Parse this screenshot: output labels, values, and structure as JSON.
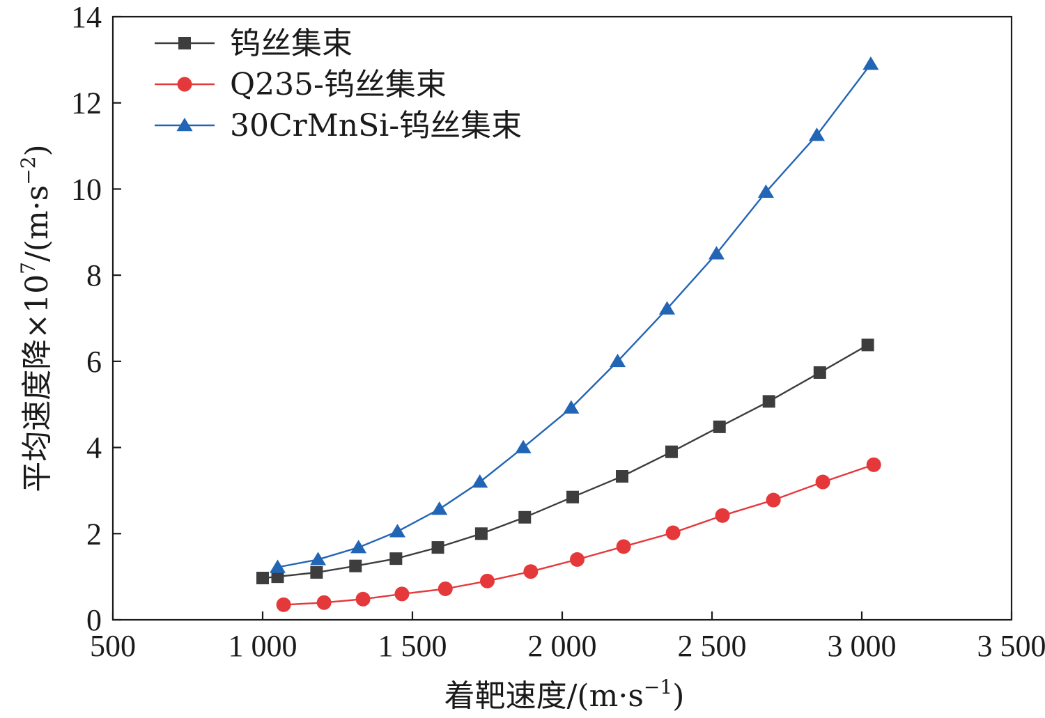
{
  "chart_data": {
    "type": "line",
    "title": "",
    "xlabel_main": "着靶速度/(m",
    "xlabel_dot": "·",
    "xlabel_s": "s",
    "xlabel_sup": "−1",
    "xlabel_close": ")",
    "ylabel_main": "平均速度降×10",
    "ylabel_sup7": "7",
    "ylabel_unit": "/(m",
    "ylabel_dot": "·",
    "ylabel_s": "s",
    "ylabel_sup2": "−2",
    "ylabel_close": ")",
    "xlim": [
      500,
      3500
    ],
    "ylim": [
      0,
      14
    ],
    "x_ticks": [
      500,
      1000,
      1500,
      2000,
      2500,
      3000,
      3500
    ],
    "x_tick_labels": [
      "500",
      "1 000",
      "1 500",
      "2 000",
      "2 500",
      "3 000",
      "3 500"
    ],
    "y_ticks": [
      0,
      2,
      4,
      6,
      8,
      10,
      12,
      14
    ],
    "y_tick_labels": [
      "0",
      "2",
      "4",
      "6",
      "8",
      "10",
      "12",
      "14"
    ],
    "grid": false,
    "legend_position": "top-left",
    "series": [
      {
        "name": "钨丝集束",
        "marker": "square",
        "color": "#3d3d3d",
        "x": [
          1000,
          1050,
          1180,
          1310,
          1445,
          1585,
          1730,
          1875,
          2035,
          2200,
          2365,
          2525,
          2690,
          2860,
          3020
        ],
        "y": [
          0.97,
          1.0,
          1.1,
          1.25,
          1.42,
          1.68,
          2.0,
          2.38,
          2.85,
          3.33,
          3.9,
          4.48,
          5.07,
          5.74,
          6.38
        ]
      },
      {
        "name": "Q235-钨丝集束",
        "marker": "circle",
        "color": "#e5383b",
        "x": [
          1070,
          1205,
          1335,
          1465,
          1610,
          1750,
          1895,
          2050,
          2205,
          2370,
          2535,
          2705,
          2870,
          3040
        ],
        "y": [
          0.35,
          0.4,
          0.48,
          0.6,
          0.72,
          0.9,
          1.12,
          1.4,
          1.7,
          2.02,
          2.42,
          2.78,
          3.2,
          3.6
        ]
      },
      {
        "name": "30CrMnSi-钨丝集束",
        "marker": "triangle",
        "color": "#2265b5",
        "x": [
          1050,
          1185,
          1320,
          1450,
          1590,
          1725,
          1870,
          2030,
          2185,
          2350,
          2515,
          2680,
          2850,
          3030
        ],
        "y": [
          1.22,
          1.4,
          1.68,
          2.05,
          2.57,
          3.2,
          4.0,
          4.92,
          6.0,
          7.22,
          8.5,
          9.93,
          11.25,
          12.9
        ]
      }
    ]
  }
}
